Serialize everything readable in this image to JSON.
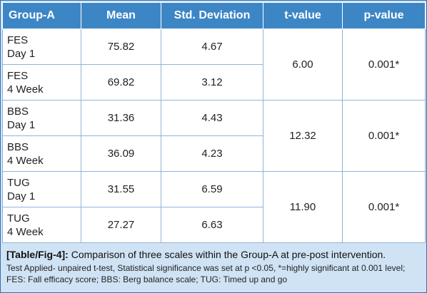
{
  "table": {
    "headers": [
      "Group-A",
      "Mean",
      "Std. Deviation",
      "t-value",
      "p-value"
    ],
    "rows": [
      {
        "label_line1": "FES",
        "label_line2": "Day 1",
        "mean": "75.82",
        "sd": "4.67"
      },
      {
        "label_line1": "FES",
        "label_line2": "4 Week",
        "mean": "69.82",
        "sd": "3.12"
      },
      {
        "label_line1": "BBS",
        "label_line2": "Day 1",
        "mean": "31.36",
        "sd": "4.43"
      },
      {
        "label_line1": "BBS",
        "label_line2": "4 Week",
        "mean": "36.09",
        "sd": "4.23"
      },
      {
        "label_line1": "TUG",
        "label_line2": "Day 1",
        "mean": "31.55",
        "sd": "6.59"
      },
      {
        "label_line1": "TUG",
        "label_line2": "4 Week",
        "mean": "27.27",
        "sd": "6.63"
      }
    ],
    "groups": [
      {
        "t_value": "6.00",
        "p_value": "0.001*"
      },
      {
        "t_value": "12.32",
        "p_value": "0.001*"
      },
      {
        "t_value": "11.90",
        "p_value": "0.001*"
      }
    ]
  },
  "caption": {
    "tag": "[Table/Fig-4]:",
    "title": "Comparison of three scales within the Group-A at pre-post intervention.",
    "note": "Test Applied- unpaired t-test, Statistical significance was set at p <0.05, *=highly significant at 0.001 level; FES: Fall efficacy score; BBS: Berg balance scale; TUG: Timed up and go"
  },
  "colors": {
    "header_bg": "#3d86c6",
    "caption_bg": "#cfe3f5",
    "border": "#8fb4da"
  }
}
